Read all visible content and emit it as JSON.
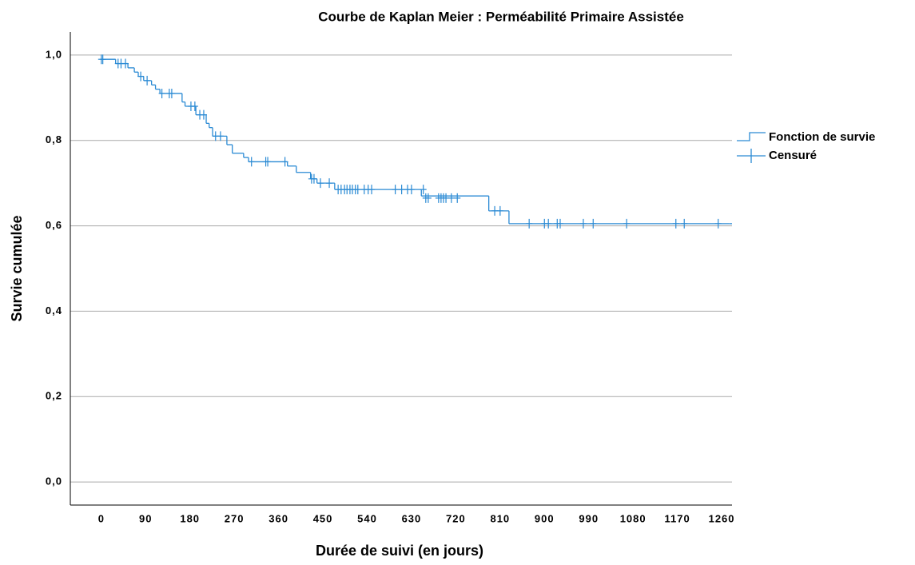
{
  "chart_data": {
    "type": "step",
    "title": "Courbe de Kaplan Meier : Perméabilité Primaire Assistée",
    "x_label": "Durée de suivi (en jours)",
    "y_label": "Survie cumulée",
    "xlim": [
      -63,
      1281
    ],
    "ylim": [
      -0.054,
      1.054
    ],
    "xticks": [
      0,
      90,
      180,
      270,
      360,
      450,
      540,
      630,
      720,
      810,
      900,
      990,
      1080,
      1170,
      1260
    ],
    "yticks": [
      {
        "value": 0,
        "label": "0,0"
      },
      {
        "value": 0.2,
        "label": "0,2"
      },
      {
        "value": 0.4,
        "label": "0,4"
      },
      {
        "value": 0.6,
        "label": "0,6"
      },
      {
        "value": 0.8,
        "label": "0,8"
      },
      {
        "value": 1.0,
        "label": "1,0"
      }
    ],
    "grid": true,
    "legend": "right",
    "series": [
      {
        "name": "Fonction de survie",
        "color": "#2a8ad4",
        "x": [
          0,
          29,
          54,
          67,
          75,
          86,
          102,
          110,
          119,
          164,
          170,
          192,
          213,
          219,
          226,
          255,
          266,
          289,
          299,
          378,
          396,
          425,
          438,
          474,
          650,
          787,
          828,
          1275
        ],
        "values": [
          0.99,
          0.98,
          0.97,
          0.96,
          0.95,
          0.94,
          0.93,
          0.92,
          0.91,
          0.89,
          0.88,
          0.86,
          0.84,
          0.83,
          0.81,
          0.79,
          0.77,
          0.76,
          0.75,
          0.74,
          0.725,
          0.71,
          0.7,
          0.685,
          0.67,
          0.635,
          0.605,
          0.605
        ]
      },
      {
        "name": "Censuré",
        "color": "#2a8ad4",
        "marker": "+",
        "x": [
          0,
          3,
          34,
          40,
          49,
          80,
          93,
          123,
          138,
          143,
          182,
          190,
          200,
          208,
          232,
          242,
          305,
          334,
          338,
          373,
          427,
          432,
          445,
          463,
          481,
          487,
          494,
          499,
          505,
          510,
          516,
          521,
          534,
          542,
          549,
          597,
          610,
          622,
          630,
          654,
          659,
          664,
          685,
          690,
          695,
          700,
          711,
          723,
          799,
          810,
          869,
          900,
          908,
          926,
          932,
          979,
          999,
          1067,
          1167,
          1184,
          1253
        ],
        "values": [
          0.99,
          0.99,
          0.98,
          0.98,
          0.98,
          0.95,
          0.94,
          0.91,
          0.91,
          0.91,
          0.88,
          0.88,
          0.86,
          0.86,
          0.81,
          0.81,
          0.75,
          0.75,
          0.75,
          0.75,
          0.71,
          0.71,
          0.7,
          0.7,
          0.685,
          0.685,
          0.685,
          0.685,
          0.685,
          0.685,
          0.685,
          0.685,
          0.685,
          0.685,
          0.685,
          0.685,
          0.685,
          0.685,
          0.685,
          0.685,
          0.665,
          0.665,
          0.665,
          0.665,
          0.665,
          0.665,
          0.665,
          0.665,
          0.635,
          0.635,
          0.605,
          0.605,
          0.605,
          0.605,
          0.605,
          0.605,
          0.605,
          0.605,
          0.605,
          0.605,
          0.605
        ]
      }
    ]
  }
}
